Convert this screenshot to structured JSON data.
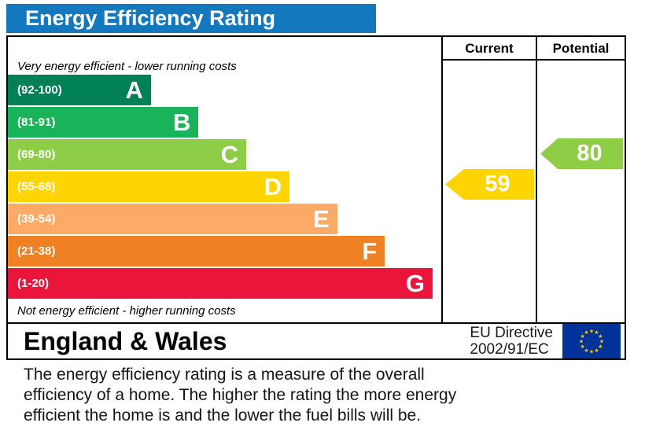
{
  "title": "Energy Efficiency Rating",
  "columns": {
    "current": "Current",
    "potential": "Potential"
  },
  "top_note": "Very energy efficient - lower running costs",
  "bottom_note": "Not energy efficient - higher running costs",
  "bands": [
    {
      "letter": "A",
      "range": "(92-100)",
      "color": "#008054",
      "width_pct": 33
    },
    {
      "letter": "B",
      "range": "(81-91)",
      "color": "#19b459",
      "width_pct": 44
    },
    {
      "letter": "C",
      "range": "(69-80)",
      "color": "#8dce46",
      "width_pct": 55
    },
    {
      "letter": "D",
      "range": "(55-68)",
      "color": "#ffd500",
      "width_pct": 65
    },
    {
      "letter": "E",
      "range": "(39-54)",
      "color": "#fcaa65",
      "width_pct": 76
    },
    {
      "letter": "F",
      "range": "(21-38)",
      "color": "#ef8023",
      "width_pct": 87
    },
    {
      "letter": "G",
      "range": "(1-20)",
      "color": "#e9153b",
      "width_pct": 98
    }
  ],
  "current": {
    "value": "59",
    "band": "D",
    "color": "#ffd500"
  },
  "potential": {
    "value": "80",
    "band": "C",
    "color": "#8dce46"
  },
  "colors": {
    "title_bar": "#1478bd",
    "flag_blue": "#003399",
    "flag_star": "#ffcc00"
  },
  "footer": {
    "region": "England & Wales",
    "directive_line1": "EU Directive",
    "directive_line2": "2002/91/EC"
  },
  "description_lines": [
    "The energy efficiency rating is a measure of the overall",
    "efficiency of a home.  The higher the rating the more energy",
    "efficient the home is and the lower the fuel bills will be."
  ],
  "chart_data": {
    "type": "bar",
    "title": "Energy Efficiency Rating",
    "categories": [
      "A (92-100)",
      "B (81-91)",
      "C (69-80)",
      "D (55-68)",
      "E (39-54)",
      "F (21-38)",
      "G (1-20)"
    ],
    "values": [
      33,
      44,
      55,
      65,
      76,
      87,
      98
    ],
    "value_unit": "relative bar length (percent of band column width)",
    "band_colors": [
      "#008054",
      "#19b459",
      "#8dce46",
      "#ffd500",
      "#fcaa65",
      "#ef8023",
      "#e9153b"
    ],
    "markers": [
      {
        "name": "Current",
        "value": 59,
        "band": "D",
        "color": "#ffd500"
      },
      {
        "name": "Potential",
        "value": 80,
        "band": "C",
        "color": "#8dce46"
      }
    ],
    "notes": [
      "Very energy efficient - lower running costs",
      "Not energy efficient - higher running costs"
    ],
    "legend_position": "none",
    "grid": false
  }
}
